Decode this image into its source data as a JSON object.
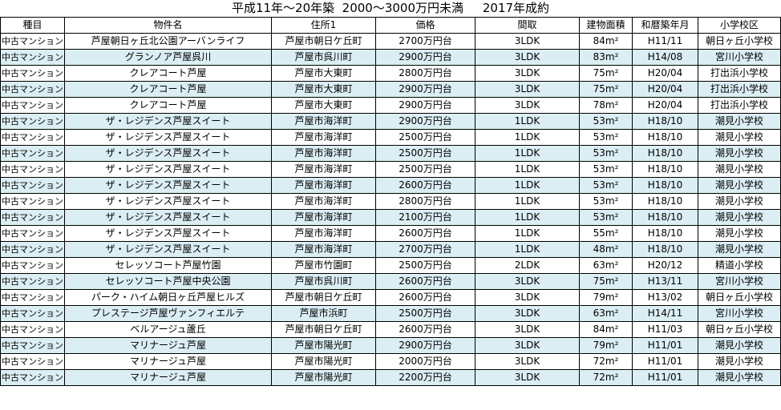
{
  "title": "平成11年～20年築  2000～3000万円未満     2017年成約",
  "columns": [
    "種目",
    "物件名",
    "住所1",
    "価格",
    "間取",
    "建物面積",
    "和暦築年月",
    "小学校区"
  ],
  "rows": [
    [
      "中古マンション",
      "芦屋朝日ヶ丘北公園アーバンライフ",
      "芦屋市朝日ケ丘町",
      "2700万円台",
      "3LDK",
      "84m²",
      "H11/11",
      "朝日ヶ丘小学校"
    ],
    [
      "中古マンション",
      "グランノア芦屋呉川",
      "芦屋市呉川町",
      "2900万円台",
      "3LDK",
      "83m²",
      "H14/08",
      "宮川小学校"
    ],
    [
      "中古マンション",
      "クレアコート芦屋",
      "芦屋市大東町",
      "2800万円台",
      "3LDK",
      "75m²",
      "H20/04",
      "打出浜小学校"
    ],
    [
      "中古マンション",
      "クレアコート芦屋",
      "芦屋市大東町",
      "2900万円台",
      "3LDK",
      "75m²",
      "H20/04",
      "打出浜小学校"
    ],
    [
      "中古マンション",
      "クレアコート芦屋",
      "芦屋市大東町",
      "2900万円台",
      "3LDK",
      "78m²",
      "H20/04",
      "打出浜小学校"
    ],
    [
      "中古マンション",
      "ザ・レジデンス芦屋スイート",
      "芦屋市海洋町",
      "2900万円台",
      "1LDK",
      "53m²",
      "H18/10",
      "潮見小学校"
    ],
    [
      "中古マンション",
      "ザ・レジデンス芦屋スイート",
      "芦屋市海洋町",
      "2500万円台",
      "1LDK",
      "53m²",
      "H18/10",
      "潮見小学校"
    ],
    [
      "中古マンション",
      "ザ・レジデンス芦屋スイート",
      "芦屋市海洋町",
      "2500万円台",
      "1LDK",
      "53m²",
      "H18/10",
      "潮見小学校"
    ],
    [
      "中古マンション",
      "ザ・レジデンス芦屋スイート",
      "芦屋市海洋町",
      "2500万円台",
      "1LDK",
      "53m²",
      "H18/10",
      "潮見小学校"
    ],
    [
      "中古マンション",
      "ザ・レジデンス芦屋スイート",
      "芦屋市海洋町",
      "2600万円台",
      "1LDK",
      "53m²",
      "H18/10",
      "潮見小学校"
    ],
    [
      "中古マンション",
      "ザ・レジデンス芦屋スイート",
      "芦屋市海洋町",
      "2800万円台",
      "1LDK",
      "53m²",
      "H18/10",
      "潮見小学校"
    ],
    [
      "中古マンション",
      "ザ・レジデンス芦屋スイート",
      "芦屋市海洋町",
      "2100万円台",
      "1LDK",
      "53m²",
      "H18/10",
      "潮見小学校"
    ],
    [
      "中古マンション",
      "ザ・レジデンス芦屋スイート",
      "芦屋市海洋町",
      "2600万円台",
      "1LDK",
      "55m²",
      "H18/10",
      "潮見小学校"
    ],
    [
      "中古マンション",
      "ザ・レジデンス芦屋スイート",
      "芦屋市海洋町",
      "2700万円台",
      "1LDK",
      "48m²",
      "H18/10",
      "潮見小学校"
    ],
    [
      "中古マンション",
      "セレッソコート芦屋竹園",
      "芦屋市竹園町",
      "2500万円台",
      "2LDK",
      "63m²",
      "H20/12",
      "精道小学校"
    ],
    [
      "中古マンション",
      "セレッソコート芦屋中央公園",
      "芦屋市呉川町",
      "2600万円台",
      "3LDK",
      "75m²",
      "H13/11",
      "宮川小学校"
    ],
    [
      "中古マンション",
      "パーク・ハイム朝日ヶ丘芦屋ヒルズ",
      "芦屋市朝日ケ丘町",
      "2600万円台",
      "3LDK",
      "79m²",
      "H13/02",
      "朝日ヶ丘小学校"
    ],
    [
      "中古マンション",
      "プレステージ芦屋ヴァンフィエルテ",
      "芦屋市浜町",
      "2500万円台",
      "3LDK",
      "63m²",
      "H14/11",
      "宮川小学校"
    ],
    [
      "中古マンション",
      "ベルアージュ蘆丘",
      "芦屋市朝日ケ丘町",
      "2600万円台",
      "3LDK",
      "84m²",
      "H11/03",
      "朝日ヶ丘小学校"
    ],
    [
      "中古マンション",
      "マリナージュ芦屋",
      "芦屋市陽光町",
      "2900万円台",
      "3LDK",
      "79m²",
      "H11/01",
      "潮見小学校"
    ],
    [
      "中古マンション",
      "マリナージュ芦屋",
      "芦屋市陽光町",
      "2000万円台",
      "3LDK",
      "72m²",
      "H11/01",
      "潮見小学校"
    ],
    [
      "中古マンション",
      "マリナージュ芦屋",
      "芦屋市陽光町",
      "2200万円台",
      "3LDK",
      "72m²",
      "H11/01",
      "潮見小学校"
    ]
  ],
  "colors": {
    "stripe": "#dbeef4",
    "border": "#000000"
  }
}
